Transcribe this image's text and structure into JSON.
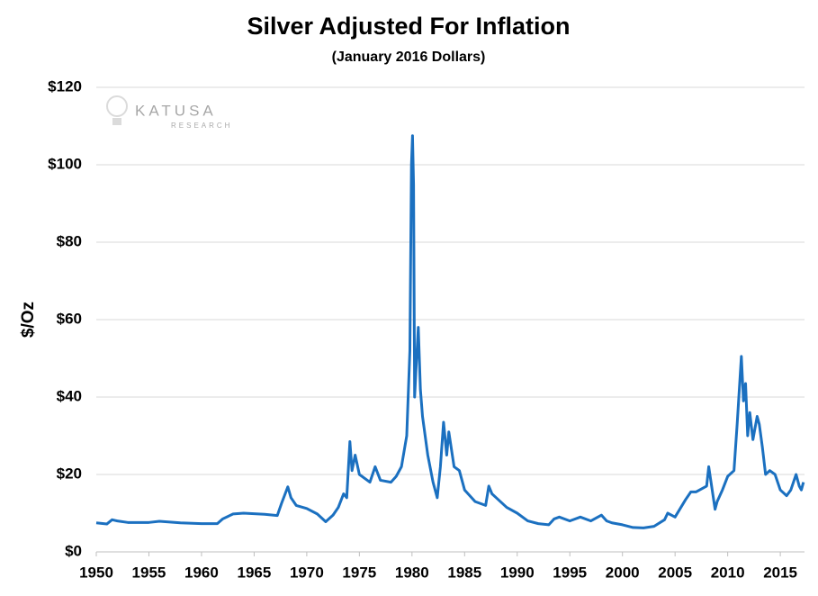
{
  "chart_data": {
    "type": "line",
    "title": "Silver Adjusted For Inflation",
    "subtitle": "(January  2016 Dollars)",
    "y_label": "$/Oz",
    "watermark": {
      "brand": "KATUSA",
      "sub": "RESEARCH"
    },
    "color": "#1b70c0",
    "grid": true,
    "xlim": [
      1950,
      2017.3
    ],
    "xticks": [
      1950,
      1955,
      1960,
      1965,
      1970,
      1975,
      1980,
      1985,
      1990,
      1995,
      2000,
      2005,
      2010,
      2015
    ],
    "ylim": [
      0,
      120
    ],
    "yticks": [
      {
        "value": 0,
        "label": "$0"
      },
      {
        "value": 20,
        "label": "$20"
      },
      {
        "value": 40,
        "label": "$40"
      },
      {
        "value": 60,
        "label": "$60"
      },
      {
        "value": 80,
        "label": "$80"
      },
      {
        "value": 100,
        "label": "$100"
      },
      {
        "value": 120,
        "label": "$120"
      }
    ],
    "x": [
      1950,
      1951,
      1951.5,
      1952,
      1953,
      1955,
      1956,
      1958,
      1960,
      1961.5,
      1962,
      1963,
      1964,
      1966,
      1967.2,
      1967.6,
      1968.2,
      1968.5,
      1969,
      1970,
      1971,
      1971.8,
      1972.5,
      1973,
      1973.5,
      1973.8,
      1974.1,
      1974.3,
      1974.6,
      1975,
      1976,
      1976.5,
      1977,
      1978,
      1978.5,
      1979,
      1979.5,
      1979.8,
      1979.95,
      1980.05,
      1980.15,
      1980.25,
      1980.4,
      1980.6,
      1980.8,
      1981,
      1981.5,
      1982,
      1982.4,
      1982.7,
      1983,
      1983.3,
      1983.5,
      1984,
      1984.5,
      1985,
      1986,
      1987,
      1987.3,
      1987.6,
      1988,
      1989,
      1990,
      1991,
      1992,
      1993,
      1993.5,
      1994,
      1995,
      1996,
      1997,
      1998,
      1998.5,
      1999,
      2000,
      2001,
      2002,
      2003,
      2004,
      2004.3,
      2005,
      2006,
      2006.5,
      2007,
      2008,
      2008.2,
      2008.8,
      2009,
      2009.5,
      2010,
      2010.6,
      2010.9,
      2011.3,
      2011.5,
      2011.7,
      2011.9,
      2012.1,
      2012.4,
      2012.8,
      2013,
      2013.3,
      2013.6,
      2014,
      2014.5,
      2015,
      2015.6,
      2016,
      2016.5,
      2016.8,
      2017,
      2017.2
    ],
    "values": [
      7.5,
      7.2,
      8.3,
      8.0,
      7.6,
      7.6,
      7.9,
      7.5,
      7.3,
      7.3,
      8.5,
      9.8,
      10.0,
      9.7,
      9.4,
      12.5,
      16.8,
      14.0,
      12.0,
      11.2,
      9.8,
      7.8,
      9.5,
      11.5,
      15,
      14,
      28.5,
      21,
      25,
      20,
      18,
      22,
      18.5,
      18,
      19.5,
      22,
      30,
      52,
      100,
      107.5,
      95,
      40,
      48,
      58,
      42,
      35,
      25,
      18,
      14,
      22,
      33.5,
      25,
      31,
      22,
      21,
      16,
      13,
      12,
      17,
      15,
      14,
      11.5,
      10,
      8,
      7.3,
      7,
      8.5,
      9,
      8,
      9,
      8,
      9.5,
      8,
      7.5,
      7,
      6.3,
      6.2,
      6.6,
      8.3,
      10,
      9,
      13.5,
      15.5,
      15.5,
      17,
      22,
      11,
      13,
      16,
      19.5,
      21,
      33,
      50.5,
      39,
      43.5,
      30,
      36,
      29,
      35,
      33,
      27,
      20,
      21,
      20,
      16,
      14.5,
      16,
      20,
      17,
      16,
      18
    ]
  }
}
